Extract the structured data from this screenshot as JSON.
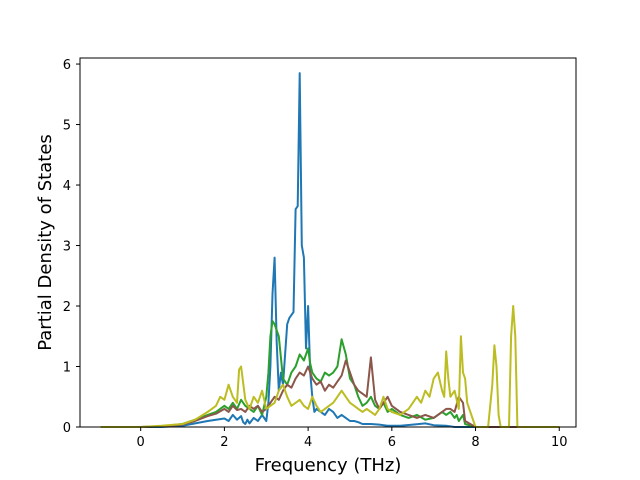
{
  "chart_data": {
    "type": "line",
    "title": "",
    "xlabel": "Frequency (THz)",
    "ylabel": "Partial Density of States",
    "xlim": [
      -1.45,
      10.4
    ],
    "ylim": [
      0,
      6.1
    ],
    "xticks": [
      0,
      2,
      4,
      6,
      8,
      10
    ],
    "yticks": [
      0,
      1,
      2,
      3,
      4,
      5,
      6
    ],
    "grid": false,
    "legend": "none",
    "series": [
      {
        "color": "#1f77b4",
        "x": [
          -0.95,
          -0.5,
          0,
          0.5,
          1.0,
          1.3,
          1.6,
          1.8,
          2.0,
          2.1,
          2.2,
          2.3,
          2.4,
          2.45,
          2.5,
          2.55,
          2.6,
          2.7,
          2.8,
          2.9,
          3.0,
          3.05,
          3.1,
          3.15,
          3.2,
          3.25,
          3.3,
          3.35,
          3.4,
          3.45,
          3.5,
          3.55,
          3.6,
          3.65,
          3.7,
          3.75,
          3.8,
          3.85,
          3.9,
          3.95,
          4.0,
          4.05,
          4.1,
          4.15,
          4.2,
          4.3,
          4.4,
          4.5,
          4.6,
          4.7,
          4.8,
          4.9,
          5.0,
          5.1,
          5.2,
          5.3,
          5.5,
          5.7,
          5.9,
          6.0,
          6.2,
          6.5,
          6.8,
          7.0,
          7.3,
          7.5,
          7.7,
          8.0,
          9.0,
          10.0
        ],
        "values": [
          0,
          0,
          0,
          0,
          0.02,
          0.06,
          0.1,
          0.12,
          0.14,
          0.1,
          0.2,
          0.12,
          0.18,
          0.08,
          0.05,
          0.12,
          0.06,
          0.15,
          0.1,
          0.2,
          0.1,
          0.4,
          1.0,
          2.2,
          2.8,
          1.4,
          0.6,
          0.9,
          0.7,
          1.2,
          1.7,
          1.8,
          1.85,
          1.9,
          3.6,
          3.65,
          5.85,
          3.0,
          2.8,
          1.3,
          2.0,
          0.9,
          0.5,
          0.25,
          0.3,
          0.25,
          0.2,
          0.3,
          0.25,
          0.15,
          0.2,
          0.15,
          0.1,
          0.1,
          0.08,
          0.05,
          0.05,
          0.04,
          0.02,
          0.02,
          0.02,
          0.04,
          0.06,
          0.03,
          0.02,
          0,
          0,
          0,
          0,
          0
        ]
      },
      {
        "color": "#2ca02c",
        "x": [
          -0.95,
          -0.5,
          0,
          0.5,
          1.0,
          1.3,
          1.6,
          1.8,
          2.0,
          2.1,
          2.2,
          2.3,
          2.4,
          2.5,
          2.6,
          2.7,
          2.8,
          2.9,
          3.0,
          3.05,
          3.1,
          3.15,
          3.2,
          3.3,
          3.4,
          3.5,
          3.6,
          3.7,
          3.8,
          3.9,
          4.0,
          4.05,
          4.1,
          4.2,
          4.3,
          4.4,
          4.5,
          4.6,
          4.7,
          4.8,
          4.9,
          5.0,
          5.1,
          5.2,
          5.3,
          5.4,
          5.5,
          5.6,
          5.7,
          5.8,
          5.9,
          6.0,
          6.2,
          6.4,
          6.6,
          6.8,
          7.0,
          7.2,
          7.3,
          7.4,
          7.5,
          7.55,
          7.6,
          7.7,
          7.75,
          8.0,
          9.0,
          10.0
        ],
        "values": [
          0,
          0,
          0,
          0.01,
          0.05,
          0.12,
          0.2,
          0.25,
          0.35,
          0.3,
          0.4,
          0.3,
          0.45,
          0.35,
          0.3,
          0.25,
          0.35,
          0.2,
          0.5,
          0.9,
          1.5,
          1.75,
          1.7,
          1.5,
          0.8,
          0.7,
          0.9,
          1.0,
          1.2,
          1.1,
          1.3,
          1.05,
          0.9,
          0.8,
          0.75,
          0.9,
          0.85,
          0.9,
          1.0,
          1.45,
          1.2,
          0.8,
          0.7,
          0.5,
          0.35,
          0.4,
          0.5,
          0.35,
          0.3,
          0.4,
          0.25,
          0.3,
          0.2,
          0.15,
          0.2,
          0.12,
          0.15,
          0.25,
          0.2,
          0.25,
          0.15,
          0.2,
          0.1,
          0.2,
          0.05,
          0,
          0,
          0
        ]
      },
      {
        "color": "#8c564b",
        "x": [
          -0.95,
          -0.5,
          0,
          0.5,
          1.0,
          1.3,
          1.6,
          1.8,
          2.0,
          2.1,
          2.2,
          2.3,
          2.4,
          2.5,
          2.6,
          2.7,
          2.8,
          2.9,
          3.0,
          3.1,
          3.2,
          3.3,
          3.4,
          3.5,
          3.6,
          3.7,
          3.8,
          3.9,
          4.0,
          4.1,
          4.2,
          4.3,
          4.4,
          4.5,
          4.6,
          4.7,
          4.8,
          4.9,
          5.0,
          5.1,
          5.2,
          5.3,
          5.4,
          5.5,
          5.6,
          5.7,
          5.8,
          5.9,
          6.0,
          6.2,
          6.4,
          6.6,
          6.8,
          7.0,
          7.2,
          7.3,
          7.4,
          7.5,
          7.6,
          7.7,
          7.75,
          8.0,
          8.5,
          9.0,
          10.0
        ],
        "values": [
          0,
          0,
          0,
          0.01,
          0.04,
          0.1,
          0.18,
          0.22,
          0.3,
          0.25,
          0.35,
          0.28,
          0.3,
          0.25,
          0.35,
          0.3,
          0.35,
          0.25,
          0.3,
          0.4,
          0.5,
          0.45,
          0.6,
          0.7,
          0.65,
          0.8,
          0.9,
          0.85,
          1.0,
          0.8,
          0.7,
          0.75,
          0.6,
          0.7,
          0.65,
          0.75,
          0.85,
          1.1,
          0.9,
          0.7,
          0.6,
          0.55,
          0.5,
          1.15,
          0.45,
          0.3,
          0.4,
          0.5,
          0.35,
          0.25,
          0.2,
          0.15,
          0.2,
          0.15,
          0.25,
          0.3,
          0.3,
          0.25,
          0.5,
          0.4,
          0.1,
          0,
          0,
          0,
          0
        ]
      },
      {
        "color": "#bcbd22",
        "x": [
          -0.95,
          -0.5,
          0,
          0.5,
          1.0,
          1.3,
          1.6,
          1.8,
          1.9,
          2.0,
          2.1,
          2.2,
          2.3,
          2.35,
          2.4,
          2.5,
          2.6,
          2.7,
          2.8,
          2.9,
          3.0,
          3.1,
          3.2,
          3.3,
          3.4,
          3.5,
          3.6,
          3.7,
          3.8,
          3.9,
          4.0,
          4.1,
          4.2,
          4.3,
          4.4,
          4.5,
          4.6,
          4.7,
          4.8,
          4.9,
          5.0,
          5.1,
          5.2,
          5.3,
          5.4,
          5.5,
          5.6,
          5.7,
          5.8,
          5.9,
          6.0,
          6.2,
          6.4,
          6.6,
          6.7,
          6.8,
          6.9,
          7.0,
          7.1,
          7.2,
          7.25,
          7.3,
          7.35,
          7.4,
          7.5,
          7.6,
          7.65,
          7.7,
          7.75,
          7.8,
          8.0,
          8.3,
          8.4,
          8.45,
          8.5,
          8.55,
          8.6,
          8.7,
          8.8,
          8.85,
          8.9,
          8.95,
          9.0,
          9.1,
          9.5,
          10.0
        ],
        "values": [
          0,
          0,
          0,
          0.02,
          0.05,
          0.12,
          0.25,
          0.35,
          0.5,
          0.45,
          0.7,
          0.5,
          0.4,
          0.95,
          1.0,
          0.45,
          0.3,
          0.5,
          0.4,
          0.6,
          0.3,
          0.35,
          0.4,
          0.6,
          0.7,
          0.5,
          0.35,
          0.4,
          0.45,
          0.35,
          0.3,
          0.5,
          0.35,
          0.25,
          0.3,
          0.35,
          0.4,
          0.5,
          0.6,
          0.5,
          0.4,
          0.35,
          0.3,
          0.25,
          0.3,
          0.25,
          0.2,
          0.3,
          0.5,
          0.3,
          0.25,
          0.2,
          0.3,
          0.5,
          0.4,
          0.6,
          0.5,
          0.8,
          0.9,
          0.6,
          0.5,
          1.25,
          0.8,
          0.5,
          0.6,
          0.3,
          1.5,
          0.9,
          0.8,
          0.4,
          0,
          0,
          0.7,
          1.35,
          1.0,
          0.2,
          0,
          0,
          0,
          1.5,
          2.0,
          1.5,
          0,
          0,
          0,
          0
        ]
      }
    ]
  }
}
